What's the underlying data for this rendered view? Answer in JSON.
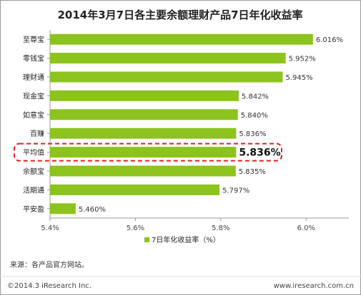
{
  "chart_data": {
    "type": "bar",
    "orientation": "horizontal",
    "title": "2014年3月7日各主要余额理财产品7日年化收益率",
    "categories": [
      "至尊宝",
      "零钱宝",
      "理财通",
      "现金宝",
      "如意宝",
      "百赚",
      "平均值",
      "余额宝",
      "活期通",
      "平安盈"
    ],
    "values": [
      6.016,
      5.952,
      5.945,
      5.842,
      5.84,
      5.836,
      5.836,
      5.835,
      5.797,
      5.46
    ],
    "value_labels": [
      "6.016%",
      "5.952%",
      "5.945%",
      "5.842%",
      "5.840%",
      "5.836%",
      "5.836%",
      "5.835%",
      "5.797%",
      "5.460%"
    ],
    "highlight_category": "平均值",
    "xlim": [
      5.4,
      6.1
    ],
    "xticks": [
      5.4,
      5.6,
      5.8,
      6.0
    ],
    "xtick_labels": [
      "5.4%",
      "5.6%",
      "5.8%",
      "6.0%"
    ],
    "legend": [
      "7日年化收益率（%）"
    ],
    "legend_position": "bottom",
    "grid": false,
    "bar_color": "#8CC31E",
    "highlight_border_color": "#E0201C"
  },
  "source_text": "来源：各产品官方网站。",
  "footer_left": "©2014.3 iResearch Inc.",
  "footer_right": "www.iresearch.com.cn"
}
